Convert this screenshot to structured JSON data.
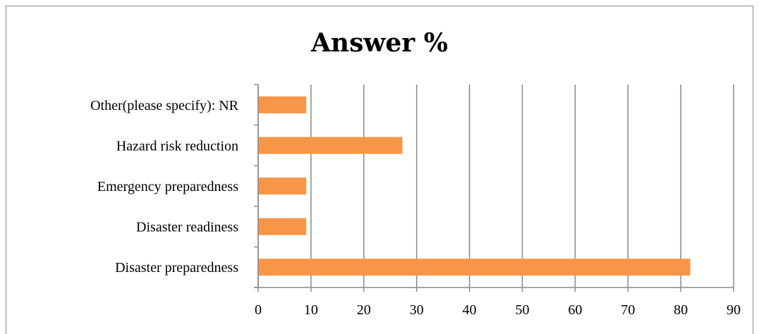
{
  "chart_data": {
    "type": "bar",
    "orientation": "horizontal",
    "title": "Answer %",
    "categories": [
      "Disaster preparedness",
      "Disaster readiness",
      "Emergency preparedness",
      "Hazard risk reduction",
      "Other(please specify): NR"
    ],
    "values": [
      81.8,
      9.1,
      9.1,
      27.3,
      9.1
    ],
    "xlim": [
      0,
      90
    ],
    "xticks": [
      0,
      10,
      20,
      30,
      40,
      50,
      60,
      70,
      80,
      90
    ],
    "grid": true,
    "bar_color": "#f79646",
    "grid_color": "#888888"
  }
}
